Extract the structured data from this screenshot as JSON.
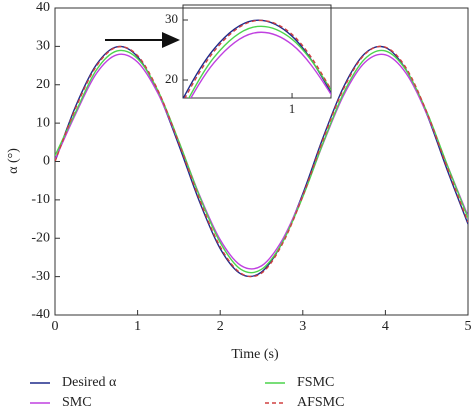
{
  "chart_data": {
    "type": "line",
    "x": [
      0,
      0.25,
      0.5,
      0.75,
      1,
      1.25,
      1.5,
      1.75,
      2,
      2.25,
      2.5,
      2.75,
      3,
      3.25,
      3.5,
      3.75,
      4,
      4.25,
      4.5,
      4.75,
      5
    ],
    "series": [
      {
        "name": "Desired α",
        "color": "#1f2a8a",
        "linestyle": "solid",
        "values": [
          0,
          14.4,
          25.2,
          29.9,
          27.3,
          17.9,
          4.2,
          -10.5,
          -22.7,
          -29.3,
          -28.8,
          -21.2,
          -8.4,
          6.5,
          19.7,
          28.1,
          29.7,
          23.9,
          12.4,
          -2.3,
          -16.3
        ]
      },
      {
        "name": "SMC",
        "color": "#c040e0",
        "linestyle": "solid",
        "values": [
          0.5,
          12.4,
          22.9,
          27.8,
          25.9,
          17.6,
          5.0,
          -8.8,
          -20.4,
          -27.1,
          -27.2,
          -20.5,
          -8.9,
          4.9,
          17.5,
          25.8,
          27.8,
          23.0,
          12.5,
          -1.0,
          -14.2
        ]
      },
      {
        "name": "FSMC",
        "color": "#4cd44c",
        "linestyle": "solid",
        "values": [
          1.5,
          12.9,
          23.8,
          28.8,
          26.8,
          18.3,
          5.2,
          -9.1,
          -21.1,
          -28.1,
          -28.1,
          -21.2,
          -9.2,
          5.1,
          18.1,
          26.7,
          28.8,
          23.8,
          13.0,
          -1.0,
          -14.7
        ]
      },
      {
        "name": "AFSMC",
        "color": "#d04040",
        "linestyle": "dashed",
        "values": [
          0,
          13.9,
          24.8,
          29.8,
          27.6,
          18.4,
          4.8,
          -9.9,
          -22.2,
          -29.1,
          -29.1,
          -21.6,
          -9.0,
          6.0,
          19.2,
          27.9,
          29.8,
          24.4,
          12.9,
          -1.7,
          -15.8
        ]
      }
    ],
    "xlabel": "Time (s)",
    "ylabel": "α (°)",
    "xlim": [
      0,
      5
    ],
    "xticks": [
      0,
      1,
      2,
      3,
      4,
      5
    ],
    "ylim": [
      -40,
      40
    ],
    "yticks": [
      -40,
      -30,
      -20,
      -10,
      0,
      10,
      20,
      30,
      40
    ],
    "inset": {
      "xlim": [
        0.3,
        1.25
      ],
      "ylim": [
        17,
        32.5
      ],
      "xticks": [
        1
      ],
      "yticks": [
        20,
        30
      ]
    },
    "legend": "bottom"
  }
}
